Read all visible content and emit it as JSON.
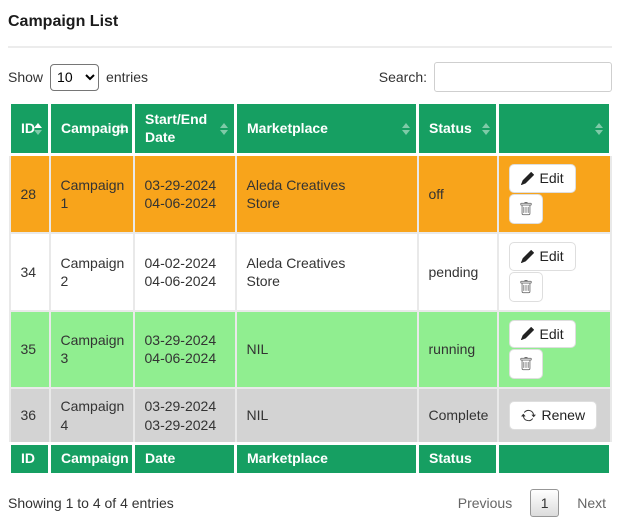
{
  "page": {
    "title": "Campaign List"
  },
  "controls": {
    "show_label": "Show",
    "page_length": "10",
    "entries_label": "entries",
    "search_label": "Search:",
    "search_value": ""
  },
  "table": {
    "columns": [
      {
        "label": "ID",
        "sort": "asc"
      },
      {
        "label": "Campaign",
        "sort": "none"
      },
      {
        "label": "Start/End Date",
        "sort": "none"
      },
      {
        "label": "Marketplace",
        "sort": "none"
      },
      {
        "label": "Status",
        "sort": "none"
      },
      {
        "label": "",
        "sort": "none"
      }
    ],
    "footer_columns": [
      "ID",
      "Campaign",
      "Date",
      "Marketplace",
      "Status",
      ""
    ],
    "rows": [
      {
        "id": "28",
        "campaign": "Campaign 1",
        "dates": [
          "03-29-2024",
          "04-06-2024"
        ],
        "marketplace": "Aleda Creatives Store",
        "status": "off",
        "bg": "#F8A41B",
        "actions": "edit_delete"
      },
      {
        "id": "34",
        "campaign": "Campaign 2",
        "dates": [
          "04-02-2024",
          "04-06-2024"
        ],
        "marketplace": "Aleda Creatives Store",
        "status": "pending",
        "bg": "#FFFFFF",
        "actions": "edit_delete"
      },
      {
        "id": "35",
        "campaign": "Campaign 3",
        "dates": [
          "03-29-2024",
          "04-06-2024"
        ],
        "marketplace": "NIL",
        "status": "running",
        "bg": "#90EE90",
        "actions": "edit_delete"
      },
      {
        "id": "36",
        "campaign": "Campaign 4",
        "dates": [
          "03-29-2024",
          "03-29-2024"
        ],
        "marketplace": "NIL",
        "status": "Complete",
        "bg": "#D3D3D3",
        "actions": "renew"
      }
    ]
  },
  "buttons": {
    "edit_label": "Edit",
    "renew_label": "Renew",
    "delete_icon": "trash-icon",
    "edit_icon": "pencil-icon",
    "renew_icon": "refresh-icon"
  },
  "footer_bar": {
    "info": "Showing 1 to 4 of 4 entries",
    "previous_label": "Previous",
    "current_page": "1",
    "next_label": "Next"
  },
  "colors": {
    "header_green": "#169F62",
    "row_orange": "#F8A41B",
    "row_white": "#FFFFFF",
    "row_light_green": "#90EE90",
    "row_gray": "#D3D3D3",
    "header_text": "#FFFFFF"
  }
}
